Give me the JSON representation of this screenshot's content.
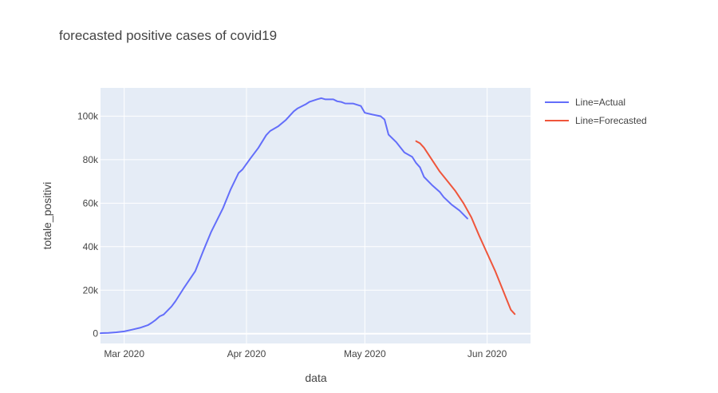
{
  "chart_data": {
    "type": "line",
    "title": "forecasted positive cases of covid19",
    "xlabel": "data",
    "ylabel": "totale_positivi",
    "x_range": [
      "2020-02-24",
      "2020-06-12"
    ],
    "ylim": [
      -4500,
      113000
    ],
    "x_ticks": [
      {
        "date": "2020-03-01",
        "label": "Mar 2020"
      },
      {
        "date": "2020-04-01",
        "label": "Apr 2020"
      },
      {
        "date": "2020-05-01",
        "label": "May 2020"
      },
      {
        "date": "2020-06-01",
        "label": "Jun 2020"
      }
    ],
    "y_ticks": [
      {
        "value": 0,
        "label": "0"
      },
      {
        "value": 20000,
        "label": "20k"
      },
      {
        "value": 40000,
        "label": "40k"
      },
      {
        "value": 60000,
        "label": "60k"
      },
      {
        "value": 80000,
        "label": "80k"
      },
      {
        "value": 100000,
        "label": "100k"
      }
    ],
    "grid": true,
    "legend_position": "right",
    "series": [
      {
        "name": "Line=Actual",
        "color": "#636efa",
        "points": [
          [
            "2020-02-24",
            221
          ],
          [
            "2020-02-26",
            400
          ],
          [
            "2020-02-28",
            650
          ],
          [
            "2020-03-01",
            1049
          ],
          [
            "2020-03-03",
            1835
          ],
          [
            "2020-03-05",
            2706
          ],
          [
            "2020-03-07",
            3916
          ],
          [
            "2020-03-08",
            5061
          ],
          [
            "2020-03-09",
            6387
          ],
          [
            "2020-03-10",
            7985
          ],
          [
            "2020-03-11",
            8800
          ],
          [
            "2020-03-13",
            12500
          ],
          [
            "2020-03-14",
            14955
          ],
          [
            "2020-03-16",
            20603
          ],
          [
            "2020-03-19",
            28710
          ],
          [
            "2020-03-21",
            37860
          ],
          [
            "2020-03-23",
            46638
          ],
          [
            "2020-03-26",
            57521
          ],
          [
            "2020-03-28",
            66414
          ],
          [
            "2020-03-30",
            73880
          ],
          [
            "2020-03-31",
            75528
          ],
          [
            "2020-04-02",
            80572
          ],
          [
            "2020-04-04",
            85388
          ],
          [
            "2020-04-06",
            91246
          ],
          [
            "2020-04-07",
            93187
          ],
          [
            "2020-04-09",
            95262
          ],
          [
            "2020-04-11",
            98273
          ],
          [
            "2020-04-13",
            102253
          ],
          [
            "2020-04-14",
            103616
          ],
          [
            "2020-04-16",
            105418
          ],
          [
            "2020-04-17",
            106607
          ],
          [
            "2020-04-19",
            107771
          ],
          [
            "2020-04-20",
            108257
          ],
          [
            "2020-04-21",
            107709
          ],
          [
            "2020-04-23",
            107699
          ],
          [
            "2020-04-24",
            106848
          ],
          [
            "2020-04-25",
            106527
          ],
          [
            "2020-04-26",
            105847
          ],
          [
            "2020-04-28",
            105813
          ],
          [
            "2020-04-30",
            104657
          ],
          [
            "2020-05-01",
            101551
          ],
          [
            "2020-05-03",
            100704
          ],
          [
            "2020-05-05",
            99980
          ],
          [
            "2020-05-06",
            98467
          ],
          [
            "2020-05-07",
            91528
          ],
          [
            "2020-05-09",
            87961
          ],
          [
            "2020-05-11",
            83324
          ],
          [
            "2020-05-13",
            81266
          ],
          [
            "2020-05-14",
            78457
          ],
          [
            "2020-05-15",
            76440
          ],
          [
            "2020-05-16",
            72070
          ],
          [
            "2020-05-18",
            68351
          ],
          [
            "2020-05-20",
            65129
          ],
          [
            "2020-05-21",
            62752
          ],
          [
            "2020-05-23",
            59322
          ],
          [
            "2020-05-25",
            56594
          ],
          [
            "2020-05-27",
            52942
          ]
        ]
      },
      {
        "name": "Line=Forecasted",
        "color": "#ef553b",
        "points": [
          [
            "2020-05-14",
            88500
          ],
          [
            "2020-05-15",
            87500
          ],
          [
            "2020-05-16",
            85500
          ],
          [
            "2020-05-18",
            80000
          ],
          [
            "2020-05-20",
            74500
          ],
          [
            "2020-05-22",
            70000
          ],
          [
            "2020-05-24",
            65500
          ],
          [
            "2020-05-26",
            60000
          ],
          [
            "2020-05-28",
            53500
          ],
          [
            "2020-05-30",
            45000
          ],
          [
            "2020-06-01",
            37000
          ],
          [
            "2020-06-03",
            29000
          ],
          [
            "2020-06-05",
            20000
          ],
          [
            "2020-06-07",
            11000
          ],
          [
            "2020-06-08",
            9000
          ]
        ]
      }
    ]
  }
}
